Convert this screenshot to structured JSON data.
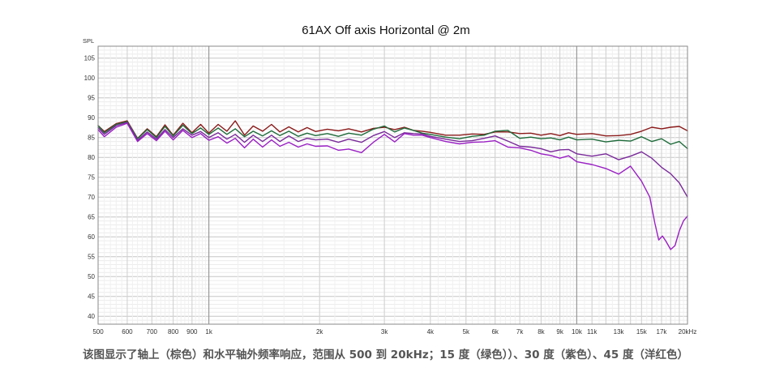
{
  "chart_data": {
    "type": "line",
    "title": "61AX Off axis Horizontal @ 2m",
    "ylabel": "SPL",
    "xlabel": "",
    "x_scale": "log",
    "xlim": [
      500,
      20000
    ],
    "ylim": [
      38,
      108
    ],
    "grid": true,
    "legend": "none",
    "y_ticks": [
      40,
      45,
      50,
      55,
      60,
      65,
      70,
      75,
      80,
      85,
      90,
      95,
      100,
      105
    ],
    "x_ticks": [
      {
        "value": 500,
        "label": "500"
      },
      {
        "value": 600,
        "label": "600"
      },
      {
        "value": 700,
        "label": "700"
      },
      {
        "value": 800,
        "label": "800"
      },
      {
        "value": 900,
        "label": "900"
      },
      {
        "value": 1000,
        "label": "1k"
      },
      {
        "value": 2000,
        "label": "2k"
      },
      {
        "value": 3000,
        "label": "3k"
      },
      {
        "value": 4000,
        "label": "4k"
      },
      {
        "value": 5000,
        "label": "5k"
      },
      {
        "value": 6000,
        "label": "6k"
      },
      {
        "value": 7000,
        "label": "7k"
      },
      {
        "value": 8000,
        "label": "8k"
      },
      {
        "value": 9000,
        "label": "9k"
      },
      {
        "value": 10000,
        "label": "10k"
      },
      {
        "value": 11000,
        "label": "11k"
      },
      {
        "value": 13000,
        "label": "13k"
      },
      {
        "value": 15000,
        "label": "15k"
      },
      {
        "value": 17000,
        "label": "17k"
      },
      {
        "value": 20000,
        "label": "20kHz"
      }
    ],
    "series": [
      {
        "color": "#8b1a1a",
        "x": [
          500,
          520,
          560,
          600,
          640,
          680,
          720,
          760,
          800,
          850,
          900,
          950,
          1000,
          1060,
          1120,
          1180,
          1250,
          1320,
          1400,
          1480,
          1560,
          1650,
          1750,
          1850,
          1950,
          2100,
          2250,
          2400,
          2600,
          2800,
          3000,
          3200,
          3400,
          3600,
          3800,
          4000,
          4400,
          4800,
          5200,
          5600,
          6000,
          6500,
          7000,
          7500,
          8000,
          8500,
          9000,
          9500,
          10000,
          11000,
          12000,
          13000,
          14000,
          15000,
          16000,
          17000,
          18000,
          19000,
          20000
        ],
        "y": [
          88,
          86.5,
          88.5,
          89.2,
          84.8,
          87.2,
          85.2,
          88.2,
          85.6,
          88.6,
          86.2,
          88.3,
          86.1,
          88.3,
          86.6,
          89.2,
          85.6,
          87.9,
          86.6,
          88.3,
          86.4,
          87.7,
          86.4,
          87.5,
          86.5,
          87.1,
          86.7,
          87.2,
          86.4,
          87.3,
          87.6,
          87.0,
          87.6,
          86.8,
          86.6,
          86.3,
          85.6,
          85.6,
          85.9,
          85.8,
          86.4,
          86.4,
          86.0,
          86.1,
          85.6,
          86.0,
          85.5,
          86.2,
          85.8,
          86.0,
          85.4,
          85.5,
          85.8,
          86.6,
          87.6,
          87.2,
          87.6,
          87.8,
          86.7
        ]
      },
      {
        "color": "#1e6b3a",
        "x": [
          500,
          520,
          560,
          600,
          640,
          680,
          720,
          760,
          800,
          850,
          900,
          950,
          1000,
          1060,
          1120,
          1180,
          1250,
          1320,
          1400,
          1480,
          1560,
          1650,
          1750,
          1850,
          1950,
          2100,
          2250,
          2400,
          2600,
          2800,
          3000,
          3200,
          3400,
          3600,
          3800,
          4000,
          4400,
          4800,
          5200,
          5600,
          6000,
          6500,
          7000,
          7500,
          8000,
          8500,
          9000,
          9500,
          10000,
          11000,
          12000,
          13000,
          14000,
          15000,
          16000,
          17000,
          18000,
          19000,
          20000
        ],
        "y": [
          88,
          86.2,
          88.3,
          89.0,
          84.7,
          87.0,
          85.0,
          87.8,
          85.4,
          88.1,
          86.0,
          87.4,
          85.8,
          87.4,
          85.8,
          87.2,
          85.2,
          86.6,
          85.4,
          86.7,
          85.5,
          86.6,
          85.3,
          86.1,
          85.5,
          86.0,
          85.3,
          86.1,
          85.6,
          87.1,
          87.9,
          86.4,
          87.4,
          86.8,
          86.1,
          85.8,
          85.1,
          84.7,
          85.3,
          85.6,
          86.6,
          86.8,
          84.8,
          85.1,
          84.7,
          84.9,
          84.4,
          85.1,
          84.4,
          84.6,
          83.9,
          84.3,
          84.1,
          85.2,
          84.0,
          84.7,
          83.3,
          84.0,
          82.2
        ]
      },
      {
        "color": "#7a2a9a",
        "x": [
          500,
          520,
          560,
          600,
          640,
          680,
          720,
          760,
          800,
          850,
          900,
          950,
          1000,
          1060,
          1120,
          1180,
          1250,
          1320,
          1400,
          1480,
          1560,
          1650,
          1750,
          1850,
          1950,
          2100,
          2250,
          2400,
          2600,
          2800,
          3000,
          3200,
          3400,
          3600,
          3800,
          4000,
          4400,
          4800,
          5200,
          5600,
          6000,
          6500,
          7000,
          7500,
          8000,
          8500,
          9000,
          9500,
          10000,
          11000,
          12000,
          13000,
          14000,
          15000,
          16000,
          17000,
          18000,
          19000,
          20000
        ],
        "y": [
          87.5,
          85.8,
          88.0,
          88.8,
          84.3,
          86.4,
          84.6,
          87.0,
          85.0,
          87.2,
          85.6,
          86.5,
          85.0,
          86.2,
          84.6,
          85.8,
          83.8,
          85.6,
          84.0,
          85.6,
          84.0,
          85.4,
          84.0,
          84.8,
          84.4,
          84.6,
          83.8,
          84.6,
          83.8,
          85.5,
          86.5,
          85.0,
          86.2,
          86.0,
          85.9,
          85.3,
          84.6,
          84.0,
          84.2,
          84.8,
          85.4,
          84.1,
          82.8,
          82.6,
          82.2,
          81.4,
          81.9,
          82.0,
          80.9,
          80.3,
          80.9,
          79.4,
          80.3,
          81.4,
          79.8,
          77.5,
          75.9,
          73.6,
          70.0
        ]
      },
      {
        "color": "#9a1fc4",
        "x": [
          500,
          520,
          560,
          600,
          640,
          680,
          720,
          760,
          800,
          850,
          900,
          950,
          1000,
          1060,
          1120,
          1180,
          1250,
          1320,
          1400,
          1480,
          1560,
          1650,
          1750,
          1850,
          1950,
          2100,
          2250,
          2400,
          2600,
          2800,
          3000,
          3200,
          3400,
          3600,
          3800,
          4000,
          4400,
          4800,
          5200,
          5600,
          6000,
          6500,
          7000,
          7500,
          8000,
          8500,
          9000,
          9500,
          10000,
          11000,
          12000,
          13000,
          14000,
          15000,
          15800,
          16300,
          16700,
          17100,
          17500,
          18000,
          18500,
          19000,
          19500,
          20000
        ],
        "y": [
          87.0,
          85.2,
          87.6,
          88.6,
          84.0,
          86.0,
          84.2,
          86.6,
          84.4,
          86.8,
          85.0,
          86.0,
          84.3,
          85.2,
          83.6,
          84.8,
          82.4,
          84.6,
          82.6,
          84.4,
          82.8,
          83.8,
          82.6,
          83.4,
          82.8,
          82.9,
          81.8,
          82.1,
          81.2,
          83.8,
          85.8,
          83.9,
          86.0,
          85.6,
          85.6,
          85.0,
          84.0,
          83.4,
          83.8,
          83.9,
          84.2,
          82.6,
          82.4,
          81.8,
          80.9,
          80.5,
          79.8,
          80.4,
          78.9,
          78.2,
          77.2,
          75.8,
          77.8,
          74.0,
          70.0,
          63.5,
          59.2,
          60.2,
          58.8,
          56.8,
          57.8,
          61.5,
          64.0,
          65.2
        ]
      }
    ]
  },
  "caption": "该图显示了轴上（棕色）和水平轴外频率响应，范围从 500 到 20kHz；15 度（绿色））、30 度（紫色）、45 度（洋红色）"
}
